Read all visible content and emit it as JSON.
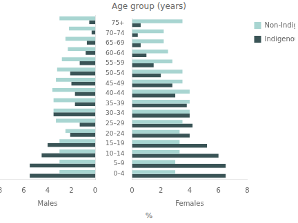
{
  "chart_data": [
    {
      "type": "bar",
      "orientation": "horizontal",
      "title": "Age group (years)",
      "annotations": [
        "%"
      ],
      "xlabel": "Males",
      "categories": [
        "0–4",
        "5–9",
        "10–14",
        "15–19",
        "20–24",
        "25–29",
        "30–34",
        "35–39",
        "40–44",
        "45–49",
        "50–54",
        "55–59",
        "60–64",
        "65–69",
        "70–74",
        "75+"
      ],
      "series": [
        {
          "name": "Non-Indigenous",
          "color": "#a8d5d1",
          "values": [
            3.0,
            3.0,
            3.0,
            3.0,
            2.5,
            3.3,
            3.5,
            3.5,
            3.6,
            3.3,
            3.2,
            2.8,
            2.3,
            2.5,
            2.2,
            3.0
          ]
        },
        {
          "name": "Indigenous",
          "color": "#3a5456",
          "values": [
            5.5,
            5.5,
            4.5,
            4.0,
            2.1,
            1.3,
            3.5,
            1.7,
            1.7,
            2.0,
            2.1,
            1.3,
            0.8,
            0.7,
            0.3,
            0.5
          ]
        }
      ],
      "xlim": [
        8,
        0
      ],
      "xticks": [
        0,
        2,
        4,
        6,
        8
      ],
      "grid": false,
      "tick_labels": "x"
    },
    {
      "type": "bar",
      "orientation": "horizontal",
      "xlabel": "Females",
      "categories": [
        "0–4",
        "5–9",
        "10–14",
        "15–19",
        "20–24",
        "25–29",
        "30–34",
        "35–39",
        "40–44",
        "45–49",
        "50–54",
        "55–59",
        "60–64",
        "65–69",
        "70–74",
        "75+"
      ],
      "series": [
        {
          "name": "Non-Indigenous",
          "color": "#a8d5d1",
          "values": [
            3.0,
            3.0,
            3.3,
            3.3,
            3.3,
            3.5,
            4.0,
            4.0,
            4.0,
            3.5,
            3.5,
            2.8,
            2.5,
            2.2,
            2.2,
            3.5
          ]
        },
        {
          "name": "Indigenous",
          "color": "#3a5456",
          "values": [
            6.5,
            6.5,
            6.0,
            5.2,
            4.0,
            4.2,
            4.0,
            3.8,
            3.0,
            2.8,
            2.0,
            1.5,
            1.0,
            0.6,
            0.4,
            0.6
          ]
        }
      ],
      "xlim": [
        0,
        8
      ],
      "xticks": [
        0,
        2,
        4,
        6,
        8
      ],
      "grid": false,
      "legend": "right"
    }
  ]
}
